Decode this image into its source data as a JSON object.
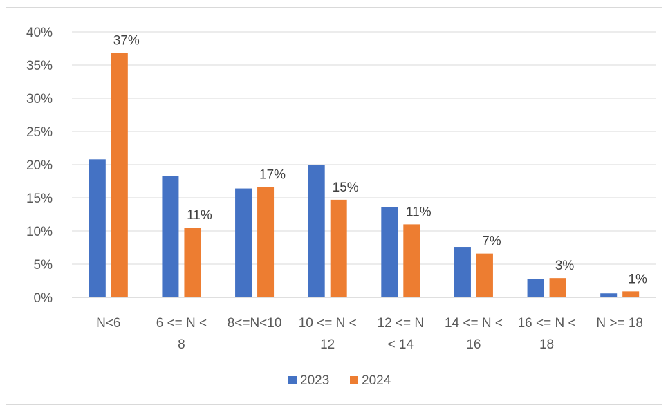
{
  "chart_data": {
    "type": "bar",
    "categories": [
      [
        "N<6"
      ],
      [
        "6 <= N <",
        "8"
      ],
      [
        "8<=N<10"
      ],
      [
        "10 <= N <",
        "12"
      ],
      [
        "12 <= N",
        "< 14"
      ],
      [
        "14 <= N <",
        "16"
      ],
      [
        "16 <= N <",
        "18"
      ],
      [
        "N >= 18"
      ]
    ],
    "series": [
      {
        "name": "2023",
        "color": "#4472c4",
        "values": [
          20.8,
          18.3,
          16.4,
          20.0,
          13.6,
          7.6,
          2.8,
          0.6
        ],
        "data_labels": [
          "",
          "",
          "",
          "",
          "",
          "",
          "",
          ""
        ]
      },
      {
        "name": "2024",
        "color": "#ed7d31",
        "values": [
          36.8,
          10.5,
          16.6,
          14.7,
          11.0,
          6.6,
          2.9,
          0.9
        ],
        "data_labels": [
          "37%",
          "11%",
          "17%",
          "15%",
          "11%",
          "7%",
          "3%",
          "1%"
        ]
      }
    ],
    "ylim": [
      0,
      40
    ],
    "y_ticks": [
      "0%",
      "5%",
      "10%",
      "15%",
      "20%",
      "25%",
      "30%",
      "35%",
      "40%"
    ],
    "y_tick_values": [
      0,
      5,
      10,
      15,
      20,
      25,
      30,
      35,
      40
    ],
    "grid": true,
    "legend_position": "bottom",
    "title": "",
    "xlabel": "",
    "ylabel": ""
  }
}
